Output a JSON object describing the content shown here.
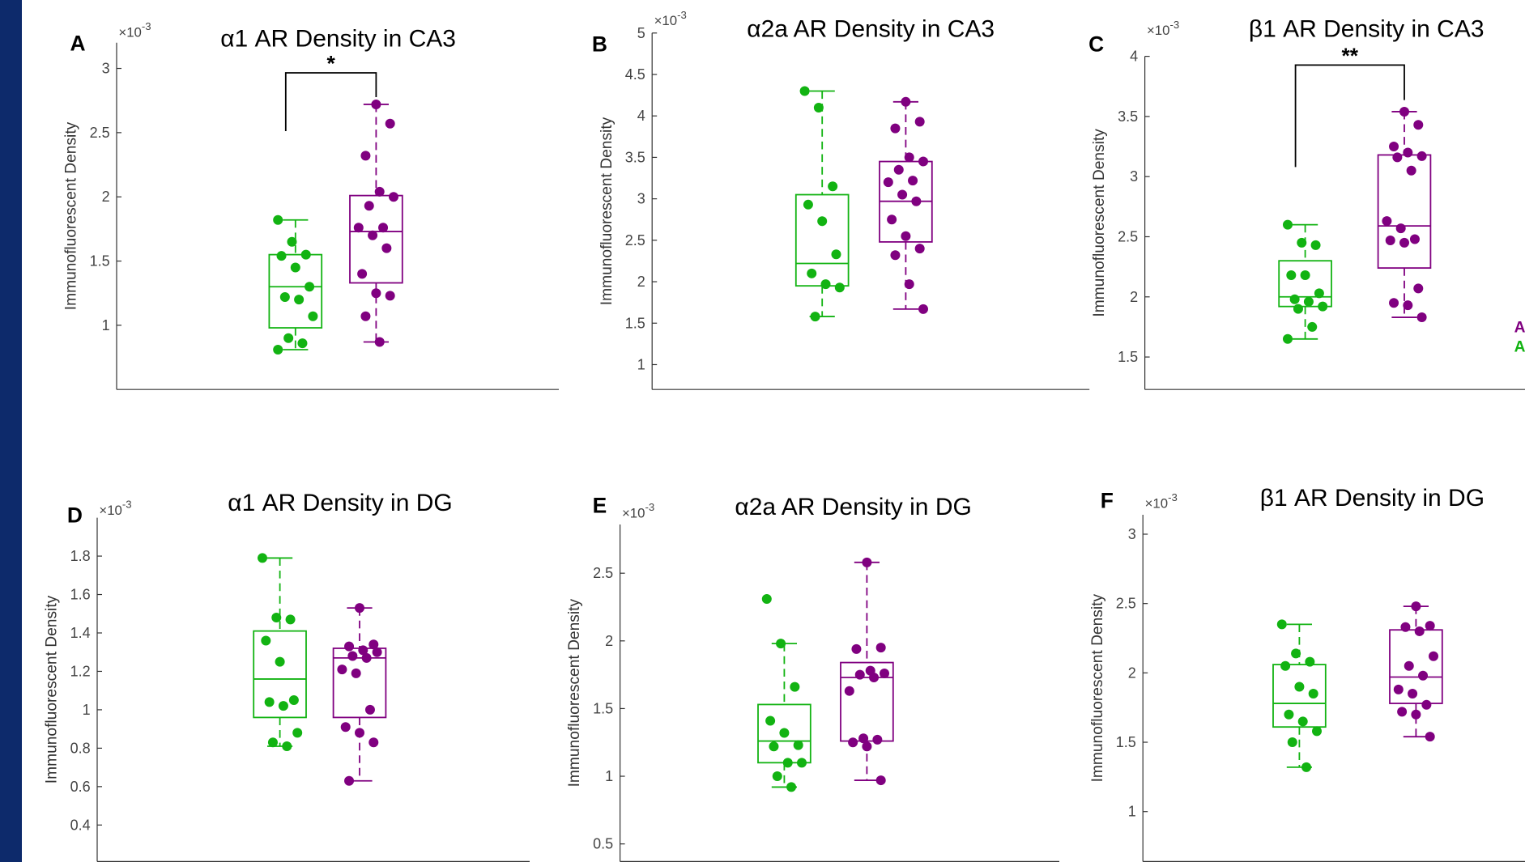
{
  "chart_data": [
    {
      "type": "box",
      "panel_label": "A",
      "title": "α1 AR Density in CA3",
      "ylabel": "Immunofluorescent Density",
      "multiplier": {
        "base": "×10",
        "exponent": "-3"
      },
      "ylim": [
        0.5,
        3.2
      ],
      "yticks": [
        1,
        1.5,
        2,
        2.5,
        3
      ],
      "annotation": "*",
      "series": [
        {
          "color": "#12b312",
          "whisker_low": 0.81,
          "q1": 0.98,
          "median": 1.3,
          "q3": 1.55,
          "whisker_high": 1.82,
          "points": [
            1.82,
            1.65,
            1.55,
            1.54,
            1.45,
            1.3,
            1.22,
            1.2,
            1.07,
            0.9,
            0.86,
            0.81
          ]
        },
        {
          "color": "#800080",
          "whisker_low": 0.87,
          "q1": 1.33,
          "median": 1.73,
          "q3": 2.01,
          "whisker_high": 2.72,
          "points": [
            2.72,
            2.57,
            2.32,
            2.04,
            2.0,
            1.93,
            1.76,
            1.76,
            1.7,
            1.6,
            1.4,
            1.25,
            1.23,
            1.07,
            0.87
          ]
        }
      ]
    },
    {
      "type": "box",
      "panel_label": "B",
      "title": "α2a AR Density in CA3",
      "ylabel": "Immunofluorescent Density",
      "multiplier": {
        "base": "×10",
        "exponent": "-3"
      },
      "ylim": [
        0.7,
        5
      ],
      "yticks": [
        1,
        1.5,
        2,
        2.5,
        3,
        3.5,
        4,
        4.5,
        5
      ],
      "series": [
        {
          "color": "#12b312",
          "whisker_low": 1.58,
          "q1": 1.95,
          "median": 2.22,
          "q3": 3.05,
          "whisker_high": 4.3,
          "points": [
            4.3,
            4.1,
            3.15,
            2.93,
            2.73,
            2.33,
            2.1,
            1.97,
            1.93,
            1.58
          ]
        },
        {
          "color": "#800080",
          "whisker_low": 1.67,
          "q1": 2.48,
          "median": 2.97,
          "q3": 3.45,
          "whisker_high": 4.17,
          "points": [
            4.17,
            3.93,
            3.85,
            3.5,
            3.45,
            3.35,
            3.22,
            3.2,
            3.05,
            2.97,
            2.75,
            2.55,
            2.4,
            2.32,
            1.97,
            1.67
          ]
        }
      ]
    },
    {
      "type": "box",
      "panel_label": "C",
      "title": "β1 AR Density in CA3",
      "ylabel": "Immunofluorescent Density",
      "multiplier": {
        "base": "×10",
        "exponent": "-3"
      },
      "ylim": [
        1.23,
        4
      ],
      "yticks": [
        1.5,
        2,
        2.5,
        3,
        3.5,
        4
      ],
      "annotation": "**",
      "series": [
        {
          "color": "#12b312",
          "whisker_low": 1.65,
          "q1": 1.92,
          "median": 2.0,
          "q3": 2.3,
          "whisker_high": 2.6,
          "points": [
            2.6,
            2.45,
            2.43,
            2.18,
            2.18,
            2.03,
            1.98,
            1.96,
            1.92,
            1.9,
            1.75,
            1.65
          ]
        },
        {
          "color": "#800080",
          "whisker_low": 1.83,
          "q1": 2.24,
          "median": 2.59,
          "q3": 3.18,
          "whisker_high": 3.54,
          "points": [
            3.54,
            3.43,
            3.25,
            3.2,
            3.17,
            3.16,
            3.05,
            2.63,
            2.57,
            2.48,
            2.47,
            2.45,
            2.07,
            1.95,
            1.93,
            1.83
          ]
        }
      ]
    },
    {
      "type": "box",
      "panel_label": "D",
      "title": "α1 AR Density in DG",
      "ylabel": "Immunofluorescent Density",
      "multiplier": {
        "base": "×10",
        "exponent": "-3"
      },
      "ylim": [
        0.21,
        2.0
      ],
      "yticks": [
        0.4,
        0.6,
        0.8,
        1,
        1.2,
        1.4,
        1.6,
        1.8
      ],
      "series": [
        {
          "color": "#12b312",
          "whisker_low": 0.81,
          "q1": 0.96,
          "median": 1.16,
          "q3": 1.41,
          "whisker_high": 1.79,
          "points": [
            1.79,
            1.48,
            1.47,
            1.36,
            1.25,
            1.05,
            1.04,
            1.02,
            0.88,
            0.83,
            0.81
          ]
        },
        {
          "color": "#800080",
          "whisker_low": 0.63,
          "q1": 0.96,
          "median": 1.27,
          "q3": 1.32,
          "whisker_high": 1.53,
          "points": [
            1.53,
            1.34,
            1.33,
            1.31,
            1.3,
            1.28,
            1.27,
            1.21,
            1.19,
            1.0,
            0.91,
            0.88,
            0.83,
            0.63
          ]
        }
      ]
    },
    {
      "type": "box",
      "panel_label": "E",
      "title": "α2a AR Density in DG",
      "ylabel": "Immunofluorescent Density",
      "multiplier": {
        "base": "×10",
        "exponent": "-3"
      },
      "ylim": [
        0.37,
        2.86
      ],
      "yticks": [
        0.5,
        1,
        1.5,
        2,
        2.5
      ],
      "series": [
        {
          "color": "#12b312",
          "whisker_low": 0.92,
          "q1": 1.1,
          "median": 1.26,
          "q3": 1.53,
          "whisker_high": 1.98,
          "points": [
            2.31,
            1.98,
            1.66,
            1.41,
            1.32,
            1.23,
            1.22,
            1.1,
            1.1,
            1.0,
            0.92
          ]
        },
        {
          "color": "#800080",
          "whisker_low": 0.97,
          "q1": 1.26,
          "median": 1.73,
          "q3": 1.84,
          "whisker_high": 2.58,
          "points": [
            2.58,
            1.95,
            1.94,
            1.78,
            1.76,
            1.75,
            1.73,
            1.63,
            1.28,
            1.27,
            1.25,
            1.22,
            0.97
          ]
        }
      ]
    },
    {
      "type": "box",
      "panel_label": "F",
      "title": "β1 AR Density in DG",
      "ylabel": "Immunofluorescent Density",
      "multiplier": {
        "base": "×10",
        "exponent": "-3"
      },
      "ylim": [
        0.64,
        3.14
      ],
      "yticks": [
        1,
        1.5,
        2,
        2.5,
        3
      ],
      "series": [
        {
          "color": "#12b312",
          "whisker_low": 1.32,
          "q1": 1.61,
          "median": 1.78,
          "q3": 2.06,
          "whisker_high": 2.35,
          "points": [
            2.35,
            2.14,
            2.08,
            2.05,
            1.9,
            1.85,
            1.7,
            1.65,
            1.58,
            1.5,
            1.32
          ]
        },
        {
          "color": "#800080",
          "whisker_low": 1.54,
          "q1": 1.78,
          "median": 1.97,
          "q3": 2.31,
          "whisker_high": 2.48,
          "points": [
            2.48,
            2.34,
            2.33,
            2.3,
            2.12,
            2.05,
            1.98,
            1.88,
            1.85,
            1.77,
            1.72,
            1.7,
            1.54
          ]
        }
      ]
    }
  ],
  "legend_fragments": [
    {
      "text": "A",
      "color": "#800080"
    },
    {
      "text": "A",
      "color": "#12b312"
    }
  ]
}
